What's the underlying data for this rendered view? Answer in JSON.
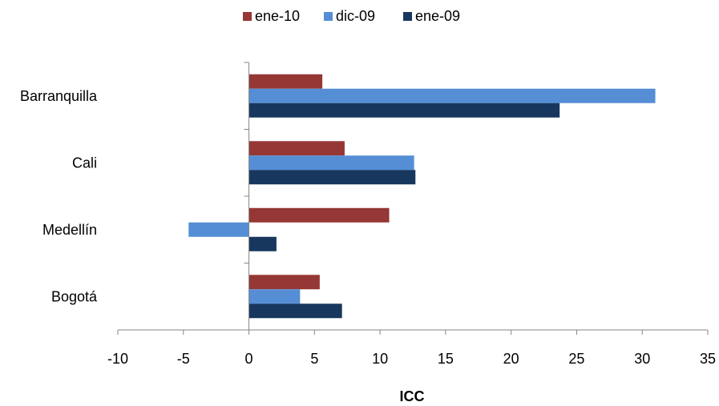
{
  "chart_data": {
    "type": "bar",
    "orientation": "horizontal",
    "categories": [
      "Barranquilla",
      "Cali",
      "Medellín",
      "Bogotá"
    ],
    "series": [
      {
        "name": "ene-10",
        "color": "#953735",
        "values": [
          5.6,
          7.3,
          10.7,
          5.4
        ]
      },
      {
        "name": "dic-09",
        "color": "#558ED5",
        "values": [
          31.0,
          12.6,
          -4.6,
          3.9
        ]
      },
      {
        "name": "ene-09",
        "color": "#17375E",
        "values": [
          23.7,
          12.7,
          2.1,
          7.1
        ]
      }
    ],
    "xlabel": "ICC",
    "ylabel": "",
    "xlim": [
      -10,
      35
    ],
    "xticks": [
      "-10",
      "-5",
      "0",
      "5",
      "10",
      "15",
      "20",
      "25",
      "30",
      "35"
    ],
    "grid": false,
    "legend_position": "top"
  }
}
